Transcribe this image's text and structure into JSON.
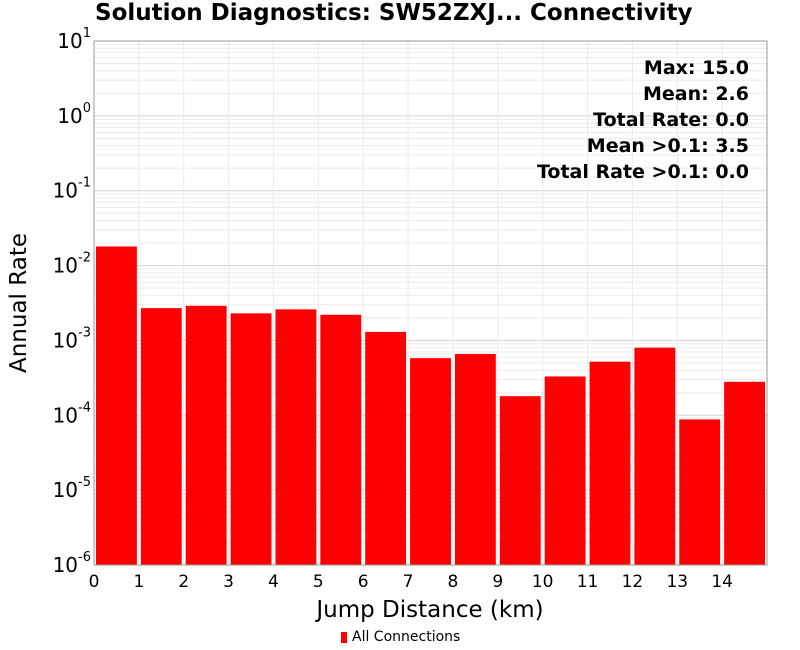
{
  "title": "Solution Diagnostics: SW52ZXJ... Connectivity",
  "chart_data": {
    "type": "bar",
    "title": "Solution Diagnostics: SW52ZXJ... Connectivity",
    "xlabel": "Jump Distance (km)",
    "ylabel": "Annual Rate",
    "y_scale": "log",
    "ylim": [
      1e-06,
      10
    ],
    "xlim": [
      0,
      15
    ],
    "x_ticks": [
      "0",
      "1",
      "2",
      "3",
      "4",
      "5",
      "6",
      "7",
      "8",
      "9",
      "10",
      "11",
      "12",
      "13",
      "14"
    ],
    "y_ticks": [
      {
        "base": "10",
        "exp": "-6"
      },
      {
        "base": "10",
        "exp": "-5"
      },
      {
        "base": "10",
        "exp": "-4"
      },
      {
        "base": "10",
        "exp": "-3"
      },
      {
        "base": "10",
        "exp": "-2"
      },
      {
        "base": "10",
        "exp": "-1"
      },
      {
        "base": "10",
        "exp": "0"
      },
      {
        "base": "10",
        "exp": "1"
      }
    ],
    "grid": true,
    "legend_position": "bottom",
    "series": [
      {
        "name": "All Connections",
        "color": "#ff0000",
        "bins": [
          [
            0,
            1
          ],
          [
            1,
            2
          ],
          [
            2,
            3
          ],
          [
            3,
            4
          ],
          [
            4,
            5
          ],
          [
            5,
            6
          ],
          [
            6,
            7
          ],
          [
            7,
            8
          ],
          [
            8,
            9
          ],
          [
            9,
            10
          ],
          [
            10,
            11
          ],
          [
            11,
            12
          ],
          [
            12,
            13
          ],
          [
            13,
            14
          ],
          [
            14,
            15
          ]
        ],
        "values": [
          0.018,
          0.0027,
          0.0029,
          0.0023,
          0.0026,
          0.0022,
          0.0013,
          0.00058,
          0.00066,
          0.00018,
          0.00033,
          0.00052,
          0.0008,
          8.8e-05,
          0.00028
        ]
      }
    ],
    "annotations": [
      "Max: 15.0",
      "Mean: 2.6",
      "Total Rate: 0.0",
      "Mean >0.1: 3.5",
      "Total Rate >0.1: 0.0"
    ]
  }
}
